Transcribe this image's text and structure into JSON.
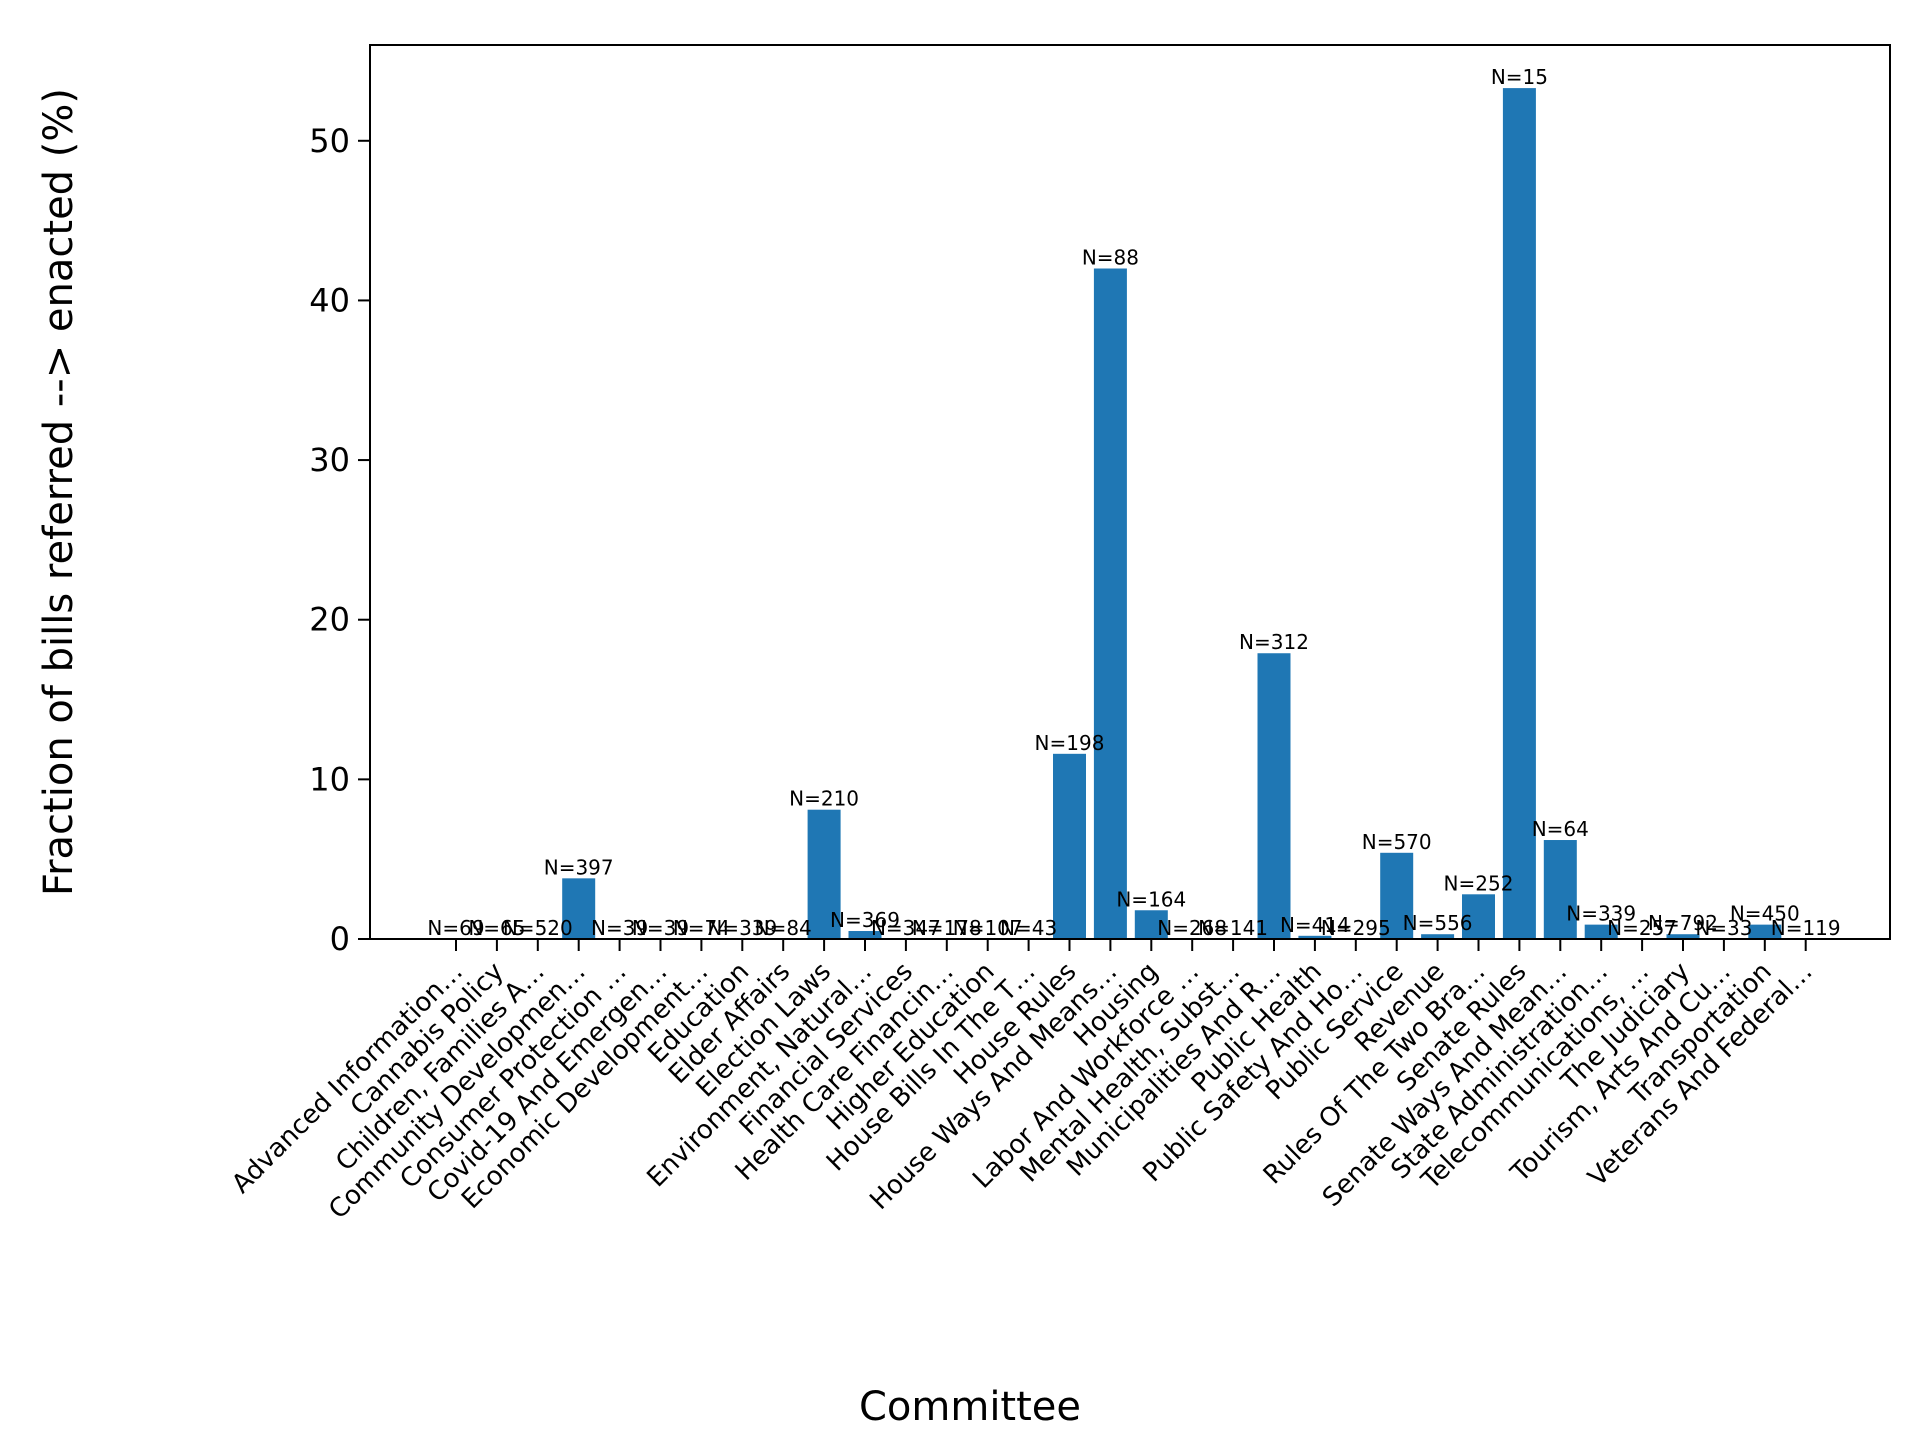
{
  "chart_data": {
    "type": "bar",
    "title": "",
    "xlabel": "Committee",
    "ylabel": "Fraction of bills referred --> enacted (%)",
    "ylim": [
      0,
      56
    ],
    "yticks": [
      0,
      10,
      20,
      30,
      40,
      50
    ],
    "grid": false,
    "bar_color": "#1f77b4",
    "categories": [
      "Advanced Information…",
      "Cannabis Policy",
      "Children, Families A…",
      "Community Developmen…",
      "Consumer Protection …",
      "Covid-19 And Emergen…",
      "Economic Development…",
      "Education",
      "Elder Affairs",
      "Election Laws",
      "Environment, Natural…",
      "Financial Services",
      "Health Care Financin…",
      "Higher Education",
      "House Bills In The T…",
      "House Rules",
      "House Ways And Means…",
      "Housing",
      "Labor And Workforce …",
      "Mental Health, Subst…",
      "Municipalities And R…",
      "Public Health",
      "Public Safety And Ho…",
      "Public Service",
      "Revenue",
      "Rules Of The Two Bra…",
      "Senate Rules",
      "Senate Ways And Mean…",
      "State Administration…",
      "Telecommunications, …",
      "The Judiciary",
      "Tourism, Arts And Cu…",
      "Transportation",
      "Veterans And Federal…"
    ],
    "values": [
      0,
      0,
      0,
      3.8,
      0,
      0,
      0,
      0,
      0,
      8.1,
      0.5,
      0,
      0,
      0,
      0,
      11.6,
      42.0,
      1.8,
      0,
      0,
      17.9,
      0.2,
      0,
      5.4,
      0.3,
      2.8,
      53.3,
      6.2,
      0.9,
      0,
      0.3,
      0,
      0.9,
      0
    ],
    "bar_labels": [
      "N=69",
      "N=65",
      "N=520",
      "N=397",
      "N=39",
      "N=39",
      "N=74",
      "N=339",
      "N=84",
      "N=210",
      "N=369",
      "N=347",
      "N=178",
      "N=107",
      "N=43",
      "N=198",
      "N=88",
      "N=164",
      "N=268",
      "N=141",
      "N=312",
      "N=414",
      "N=295",
      "N=570",
      "N=556",
      "N=252",
      "N=15",
      "N=64",
      "N=339",
      "N=257",
      "N=792",
      "N=33",
      "N=450",
      "N=119"
    ]
  }
}
